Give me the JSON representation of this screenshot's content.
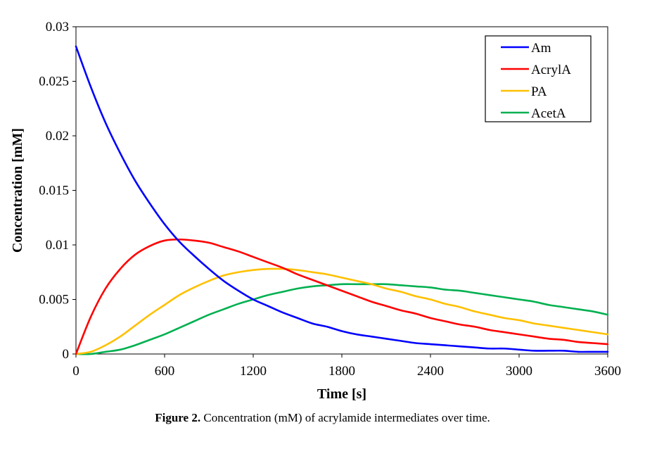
{
  "chart_data": {
    "type": "line",
    "xlabel": "Time [s]",
    "ylabel": "Concentration [mM]",
    "xlim": [
      0,
      3600
    ],
    "ylim": [
      0,
      0.03
    ],
    "x_ticks": [
      "0",
      "600",
      "1200",
      "1800",
      "2400",
      "3000",
      "3600"
    ],
    "y_ticks": [
      "0",
      "0.005",
      "0.01",
      "0.015",
      "0.02",
      "0.025",
      "0.03"
    ],
    "legend_position": "top-right",
    "grid": false,
    "x": [
      0,
      100,
      200,
      300,
      400,
      500,
      600,
      700,
      800,
      900,
      1000,
      1100,
      1200,
      1300,
      1400,
      1500,
      1600,
      1700,
      1800,
      1900,
      2000,
      2100,
      2200,
      2300,
      2400,
      2500,
      2600,
      2700,
      2800,
      2900,
      3000,
      3100,
      3200,
      3300,
      3400,
      3500,
      3600
    ],
    "series": [
      {
        "name": "Am",
        "color": "#0000FF",
        "values": [
          0.0282,
          0.0245,
          0.0212,
          0.0184,
          0.0159,
          0.0138,
          0.0119,
          0.0103,
          0.009,
          0.0078,
          0.0067,
          0.0058,
          0.005,
          0.0044,
          0.0038,
          0.0033,
          0.0028,
          0.0025,
          0.0021,
          0.0018,
          0.0016,
          0.0014,
          0.0012,
          0.001,
          0.0009,
          0.0008,
          0.0007,
          0.0006,
          0.0005,
          0.0005,
          0.0004,
          0.0003,
          0.0003,
          0.0003,
          0.0002,
          0.0002,
          0.0002
        ]
      },
      {
        "name": "AcrylA",
        "color": "#FF0000",
        "values": [
          0.0,
          0.0034,
          0.006,
          0.0078,
          0.0091,
          0.0099,
          0.0104,
          0.0105,
          0.0104,
          0.0102,
          0.0098,
          0.0094,
          0.0089,
          0.0084,
          0.0079,
          0.0073,
          0.0068,
          0.0063,
          0.0058,
          0.0053,
          0.0048,
          0.0044,
          0.004,
          0.0037,
          0.0033,
          0.003,
          0.0027,
          0.0025,
          0.0022,
          0.002,
          0.0018,
          0.0016,
          0.0014,
          0.0013,
          0.0011,
          0.001,
          0.0009
        ]
      },
      {
        "name": "PA",
        "color": "#FFC000",
        "values": [
          0.0,
          0.0002,
          0.0008,
          0.0016,
          0.0026,
          0.0036,
          0.0045,
          0.0054,
          0.0061,
          0.0067,
          0.0072,
          0.0075,
          0.0077,
          0.0078,
          0.0078,
          0.0077,
          0.0075,
          0.0073,
          0.007,
          0.0067,
          0.0064,
          0.006,
          0.0057,
          0.0053,
          0.005,
          0.0046,
          0.0043,
          0.0039,
          0.0036,
          0.0033,
          0.0031,
          0.0028,
          0.0026,
          0.0024,
          0.0022,
          0.002,
          0.0018
        ]
      },
      {
        "name": "AcetA",
        "color": "#00B050",
        "values": [
          0.0,
          0.0,
          0.0002,
          0.0004,
          0.0008,
          0.0013,
          0.0018,
          0.0024,
          0.003,
          0.0036,
          0.0041,
          0.0046,
          0.005,
          0.0054,
          0.0057,
          0.006,
          0.0062,
          0.0063,
          0.0064,
          0.0064,
          0.0064,
          0.0064,
          0.0063,
          0.0062,
          0.0061,
          0.0059,
          0.0058,
          0.0056,
          0.0054,
          0.0052,
          0.005,
          0.0048,
          0.0045,
          0.0043,
          0.0041,
          0.0039,
          0.0036
        ]
      }
    ]
  },
  "caption": {
    "lead": "Figure 2.",
    "text": " Concentration (mM) of acrylamide intermediates over time."
  }
}
